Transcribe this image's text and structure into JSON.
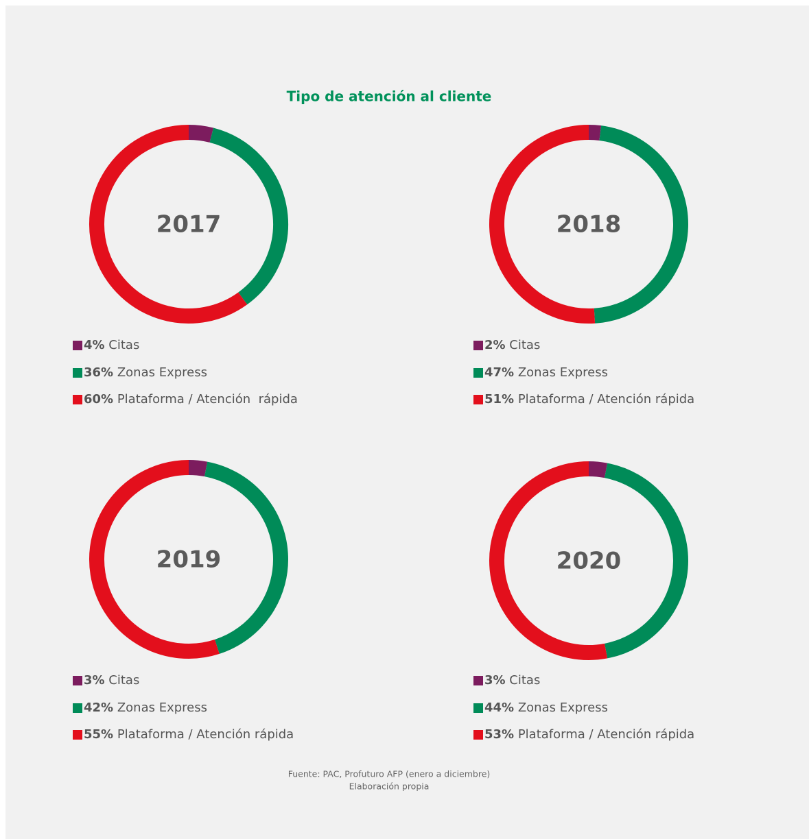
{
  "title": "Tipo de atención al cliente",
  "footer": [
    "Fuente: PAC, Profuturo AFP (enero a diciembre)",
    "Elaboración propia"
  ],
  "chart_data": [
    {
      "type": "donut",
      "title": "2017",
      "categories": [
        "Citas",
        "Zonas Express",
        "Plataforma / Atención  rápida"
      ],
      "values": [
        4,
        36,
        60
      ],
      "value_labels": [
        "4%",
        "36%",
        "60%"
      ],
      "colors": [
        "#7c1c5e",
        "#008b58",
        "#e30f1c"
      ]
    },
    {
      "type": "donut",
      "title": "2018",
      "categories": [
        "Citas",
        "Zonas Express",
        "Plataforma / Atención rápida"
      ],
      "values": [
        2,
        47,
        51
      ],
      "value_labels": [
        "2%",
        "47%",
        "51%"
      ],
      "colors": [
        "#7c1c5e",
        "#008b58",
        "#e30f1c"
      ]
    },
    {
      "type": "donut",
      "title": "2019",
      "categories": [
        "Citas",
        "Zonas Express",
        "Plataforma / Atención rápida"
      ],
      "values": [
        3,
        42,
        55
      ],
      "value_labels": [
        "3%",
        "42%",
        "55%"
      ],
      "colors": [
        "#7c1c5e",
        "#008b58",
        "#e30f1c"
      ]
    },
    {
      "type": "donut",
      "title": "2020",
      "categories": [
        "Citas",
        "Zonas Express",
        "Plataforma / Atención rápida"
      ],
      "values": [
        3,
        44,
        53
      ],
      "value_labels": [
        "3%",
        "44%",
        "53%"
      ],
      "colors": [
        "#7c1c5e",
        "#008b58",
        "#e30f1c"
      ]
    }
  ]
}
